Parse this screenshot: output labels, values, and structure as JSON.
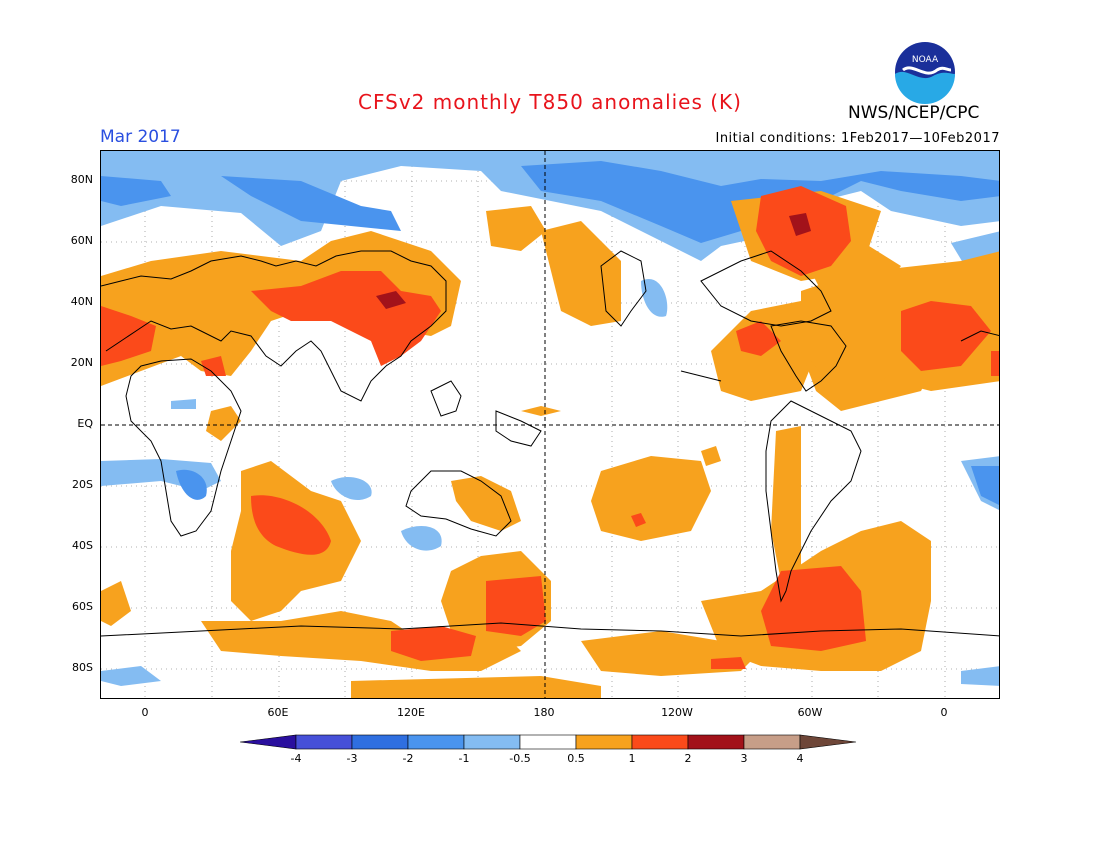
{
  "title": "CFSv2 monthly T850 anomalies (K)",
  "month": "Mar 2017",
  "initial_conditions": "Initial conditions: 1Feb2017—10Feb2017",
  "organization": "NWS/NCEP/CPC",
  "logo_text": "NOAA",
  "lat_labels": [
    "80N",
    "60N",
    "40N",
    "20N",
    "EQ",
    "20S",
    "40S",
    "60S",
    "80S"
  ],
  "lon_labels": [
    "0",
    "60E",
    "120E",
    "180",
    "120W",
    "60W",
    "0"
  ],
  "colorbar": {
    "labels": [
      "-4",
      "-3",
      "-2",
      "-1",
      "-0.5",
      "0.5",
      "1",
      "2",
      "3",
      "4"
    ],
    "colors": [
      "#2a0f9e",
      "#4650d8",
      "#2f6fe0",
      "#4a94ee",
      "#84bcf2",
      "#ffffff",
      "#f7a21e",
      "#fb4a1a",
      "#a2121a",
      "#c79e88",
      "#6e4638"
    ]
  },
  "colors": {
    "cold_1": "#84bcf2",
    "cold_2": "#4a94ee",
    "warm_1": "#f7a21e",
    "warm_2": "#fb4a1a",
    "warm_3": "#a2121a",
    "title": "#e8141c",
    "month": "#2a4fe0"
  }
}
